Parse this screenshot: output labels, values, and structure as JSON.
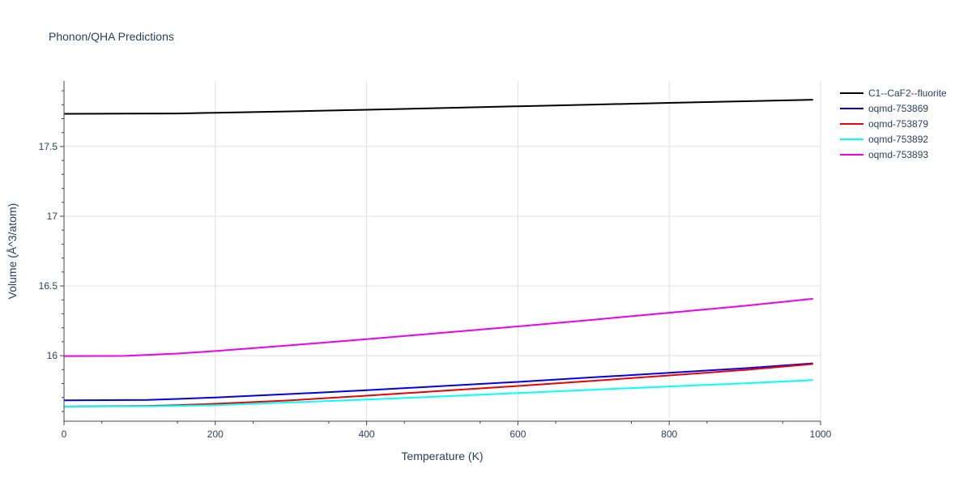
{
  "chart_data": {
    "type": "line",
    "title": "Phonon/QHA Predictions",
    "xlabel": "Temperature (K)",
    "ylabel": "Volume (Å^3/atom)",
    "xlim": [
      0,
      1000
    ],
    "ylim": [
      15.53,
      17.97
    ],
    "x_ticks": [
      0,
      200,
      400,
      600,
      800,
      1000
    ],
    "x_tick_labels": [
      "0",
      "200",
      "400",
      "600",
      "800",
      "1000"
    ],
    "y_ticks": [
      16,
      16.5,
      17,
      17.5
    ],
    "y_tick_labels": [
      "16",
      "16.5",
      "17",
      "17.5"
    ],
    "grid": true,
    "legend_position": "right",
    "series": [
      {
        "name": "C1--CaF2--fluorite",
        "color": "#000000",
        "points": [
          [
            0,
            17.735
          ],
          [
            80,
            17.736
          ],
          [
            150,
            17.737
          ],
          [
            200,
            17.742
          ],
          [
            300,
            17.752
          ],
          [
            400,
            17.764
          ],
          [
            500,
            17.776
          ],
          [
            600,
            17.789
          ],
          [
            700,
            17.801
          ],
          [
            800,
            17.813
          ],
          [
            900,
            17.825
          ],
          [
            990,
            17.836
          ]
        ]
      },
      {
        "name": "oqmd-753869",
        "color": "#0000ee",
        "points": [
          [
            0,
            15.68
          ],
          [
            110,
            15.683
          ],
          [
            150,
            15.69
          ],
          [
            200,
            15.7
          ],
          [
            300,
            15.725
          ],
          [
            400,
            15.752
          ],
          [
            500,
            15.782
          ],
          [
            600,
            15.812
          ],
          [
            700,
            15.845
          ],
          [
            800,
            15.877
          ],
          [
            900,
            15.91
          ],
          [
            990,
            15.945
          ]
        ]
      },
      {
        "name": "oqmd-753879",
        "color": "#ee0000",
        "points": [
          [
            0,
            15.635
          ],
          [
            110,
            15.64
          ],
          [
            150,
            15.645
          ],
          [
            200,
            15.655
          ],
          [
            300,
            15.68
          ],
          [
            400,
            15.713
          ],
          [
            500,
            15.748
          ],
          [
            600,
            15.783
          ],
          [
            700,
            15.82
          ],
          [
            800,
            15.858
          ],
          [
            900,
            15.898
          ],
          [
            990,
            15.94
          ]
        ]
      },
      {
        "name": "oqmd-753892",
        "color": "#00ffff",
        "points": [
          [
            0,
            15.635
          ],
          [
            110,
            15.637
          ],
          [
            150,
            15.64
          ],
          [
            200,
            15.645
          ],
          [
            300,
            15.665
          ],
          [
            400,
            15.685
          ],
          [
            500,
            15.708
          ],
          [
            600,
            15.732
          ],
          [
            700,
            15.756
          ],
          [
            800,
            15.779
          ],
          [
            900,
            15.802
          ],
          [
            990,
            15.825
          ]
        ]
      },
      {
        "name": "oqmd-753893",
        "color": "#ee00ee",
        "points": [
          [
            0,
            15.997
          ],
          [
            80,
            15.998
          ],
          [
            150,
            16.015
          ],
          [
            200,
            16.033
          ],
          [
            300,
            16.075
          ],
          [
            400,
            16.118
          ],
          [
            500,
            16.164
          ],
          [
            600,
            16.21
          ],
          [
            700,
            16.258
          ],
          [
            800,
            16.308
          ],
          [
            900,
            16.358
          ],
          [
            990,
            16.408
          ]
        ]
      }
    ]
  }
}
